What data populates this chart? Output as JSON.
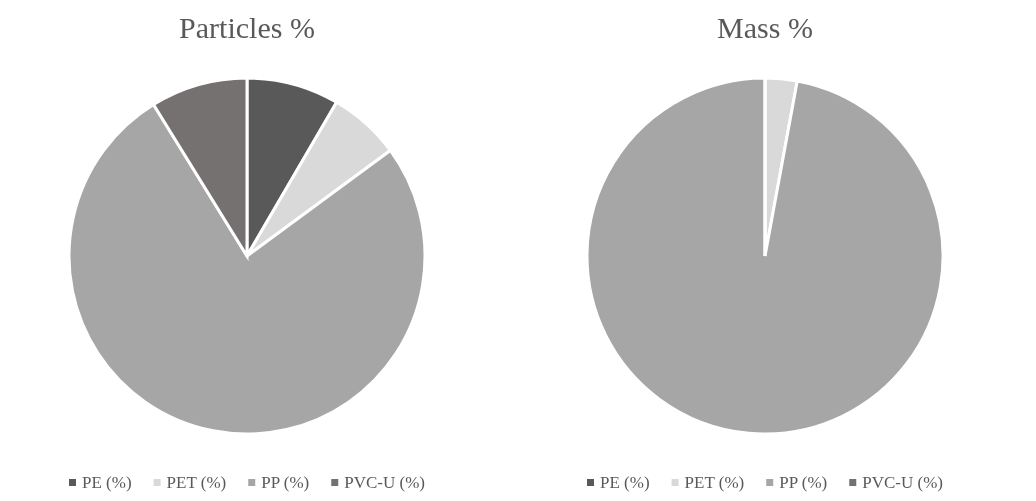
{
  "chart_data": [
    {
      "type": "pie",
      "title": "Particles %",
      "categories": [
        "PE (%)",
        "PET (%)",
        "PP (%)",
        "PVC-U (%)"
      ],
      "values": [
        8.4,
        6.5,
        76.3,
        8.8
      ],
      "colors": [
        "#595959",
        "#d9d9d9",
        "#a6a6a6",
        "#767171"
      ],
      "legend": "bottom"
    },
    {
      "type": "pie",
      "title": "Mass %",
      "categories": [
        "PE (%)",
        "PET (%)",
        "PP (%)",
        "PVC-U (%)"
      ],
      "values": [
        null,
        2.9,
        97.1,
        0
      ],
      "colors": [
        "#595959",
        "#d9d9d9",
        "#a6a6a6",
        "#767171"
      ],
      "legend": "bottom"
    }
  ]
}
